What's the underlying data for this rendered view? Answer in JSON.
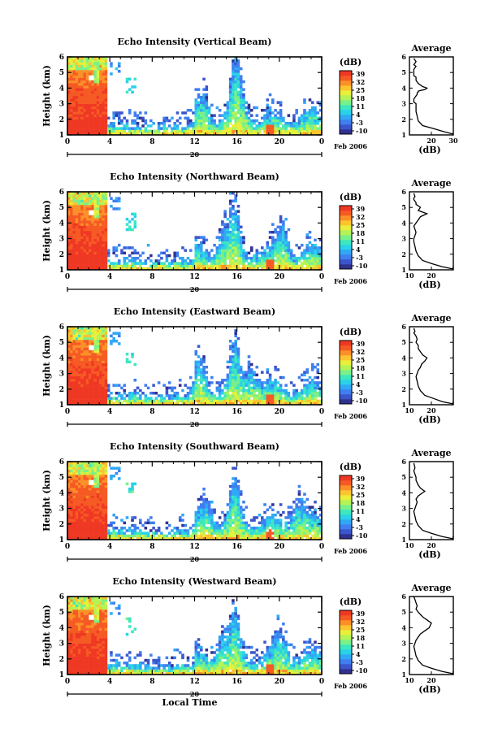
{
  "figure": {
    "xlabel": "Local Time",
    "colorbar_unit": "(dB)",
    "colorbar_ticks": [
      "39",
      "32",
      "25",
      "18",
      "11",
      "4",
      "-3",
      "-10"
    ],
    "colorbar_range": [
      -10,
      39
    ],
    "date_label": "Feb 2006",
    "day_label": "20",
    "palette": [
      "#30318f",
      "#3b56cc",
      "#3f7ff0",
      "#31a8f5",
      "#2ad2e8",
      "#3de7c0",
      "#79f08a",
      "#b5f356",
      "#e9ef3a",
      "#fdc42f",
      "#fb9028",
      "#f65a24",
      "#ef3823"
    ]
  },
  "chart_data": [
    {
      "type": "heatmap",
      "title": "Echo Intensity (Vertical Beam)",
      "ylabel": "Height (km)",
      "xlim": [
        0,
        24
      ],
      "ylim": [
        1,
        6
      ],
      "xticks": [
        "0",
        "4",
        "8",
        "12",
        "16",
        "20",
        "0"
      ],
      "yticks": [
        "1",
        "2",
        "3",
        "4",
        "5",
        "6"
      ],
      "peaks_hours": [
        15.8,
        16.4,
        12.8
      ],
      "profile": {
        "title": "Average",
        "xlabel": "(dB)",
        "xlim": [
          10,
          30
        ],
        "xticks": [
          "20",
          "30"
        ],
        "yticks": [
          "1",
          "2",
          "3",
          "4",
          "5",
          "6"
        ],
        "x": [
          30,
          26,
          21,
          16,
          14,
          13.5,
          13,
          13,
          13,
          12,
          12,
          12.5,
          13,
          13.5,
          13.5,
          14,
          14,
          15,
          17,
          18,
          16,
          14,
          13,
          13,
          12,
          12,
          12,
          12.5,
          13,
          12,
          12.5,
          13,
          12
        ],
        "y": [
          1.05,
          1.2,
          1.4,
          1.6,
          1.9,
          2.2,
          2.5,
          2.8,
          3.0,
          3.1,
          3.3,
          3.4,
          3.5,
          3.6,
          3.7,
          3.75,
          3.8,
          3.85,
          3.9,
          4.0,
          4.1,
          4.3,
          4.5,
          4.7,
          4.8,
          5.0,
          5.2,
          5.3,
          5.4,
          5.5,
          5.6,
          5.7,
          5.9
        ]
      }
    },
    {
      "type": "heatmap",
      "title": "Echo Intensity (Northward Beam)",
      "ylabel": "Height (km)",
      "xlim": [
        0,
        24
      ],
      "ylim": [
        1,
        6
      ],
      "xticks": [
        "0",
        "4",
        "8",
        "12",
        "16",
        "20",
        "0"
      ],
      "yticks": [
        "1",
        "2",
        "3",
        "4",
        "5",
        "6"
      ],
      "peaks_hours": [
        15.8,
        14.8,
        20.3
      ],
      "profile": {
        "title": "Average",
        "xlabel": "(dB)",
        "xlim": [
          10,
          30
        ],
        "xticks": [
          "10",
          "20"
        ],
        "yticks": [
          "1",
          "2",
          "3",
          "4",
          "5",
          "6"
        ],
        "x": [
          30,
          25,
          20,
          16,
          14,
          13,
          12.5,
          12,
          12,
          12.5,
          13,
          12.5,
          12,
          13,
          14,
          15,
          18,
          16,
          14,
          15,
          13,
          13,
          12.5,
          12,
          12,
          12.5,
          12
        ],
        "y": [
          1.05,
          1.2,
          1.4,
          1.6,
          1.9,
          2.2,
          2.5,
          2.8,
          3.0,
          3.2,
          3.4,
          3.6,
          3.8,
          4.0,
          4.2,
          4.4,
          4.6,
          4.7,
          4.8,
          5.0,
          5.2,
          5.3,
          5.4,
          5.5,
          5.6,
          5.7,
          5.9
        ]
      }
    },
    {
      "type": "heatmap",
      "title": "Echo Intensity (Eastward Beam)",
      "ylabel": "Height (km)",
      "xlim": [
        0,
        24
      ],
      "ylim": [
        1,
        6
      ],
      "xticks": [
        "0",
        "4",
        "8",
        "12",
        "16",
        "20",
        "0"
      ],
      "yticks": [
        "1",
        "2",
        "3",
        "4",
        "5",
        "6"
      ],
      "peaks_hours": [
        15.8,
        12.5,
        17.4
      ],
      "profile": {
        "title": "Average",
        "xlabel": "(dB)",
        "xlim": [
          10,
          30
        ],
        "xticks": [
          "10",
          "20"
        ],
        "yticks": [
          "1",
          "2",
          "3",
          "4",
          "5",
          "6"
        ],
        "x": [
          30,
          25,
          21,
          17,
          15,
          14,
          13.5,
          13,
          13.5,
          14,
          15,
          15.5,
          17,
          18,
          16,
          15,
          14,
          14,
          13,
          13.5,
          13,
          12.5,
          12,
          12.5,
          12
        ],
        "y": [
          1.05,
          1.2,
          1.4,
          1.6,
          1.9,
          2.2,
          2.5,
          2.8,
          3.0,
          3.2,
          3.4,
          3.6,
          3.8,
          4.0,
          4.2,
          4.4,
          4.6,
          4.8,
          5.0,
          5.2,
          5.4,
          5.5,
          5.6,
          5.7,
          5.9
        ]
      }
    },
    {
      "type": "heatmap",
      "title": "Echo Intensity (Southward Beam)",
      "ylabel": "Height (km)",
      "xlim": [
        0,
        24
      ],
      "ylim": [
        1,
        6
      ],
      "xticks": [
        "0",
        "4",
        "8",
        "12",
        "16",
        "20",
        "0"
      ],
      "yticks": [
        "1",
        "2",
        "3",
        "4",
        "5",
        "6"
      ],
      "peaks_hours": [
        15.8,
        13.2,
        21.8
      ],
      "profile": {
        "title": "Average",
        "xlabel": "(dB)",
        "xlim": [
          10,
          30
        ],
        "xticks": [
          "10",
          "20"
        ],
        "yticks": [
          "1",
          "2",
          "3",
          "4",
          "5",
          "6"
        ],
        "x": [
          30,
          25,
          20,
          16,
          14,
          13,
          12.5,
          12,
          12.5,
          13,
          13.5,
          13,
          14,
          16,
          17,
          15,
          14,
          13,
          13,
          12.5,
          12,
          12.5,
          12
        ],
        "y": [
          1.05,
          1.2,
          1.4,
          1.6,
          1.9,
          2.2,
          2.5,
          2.8,
          3.0,
          3.2,
          3.4,
          3.6,
          3.8,
          4.0,
          4.1,
          4.3,
          4.5,
          4.8,
          5.0,
          5.2,
          5.4,
          5.6,
          5.9
        ]
      }
    },
    {
      "type": "heatmap",
      "title": "Echo Intensity (Westward Beam)",
      "ylabel": "Height (km)",
      "xlim": [
        0,
        24
      ],
      "ylim": [
        1,
        6
      ],
      "xticks": [
        "0",
        "4",
        "8",
        "12",
        "16",
        "20",
        "0"
      ],
      "yticks": [
        "1",
        "2",
        "3",
        "4",
        "5",
        "6"
      ],
      "peaks_hours": [
        15.8,
        14.6,
        20.2
      ],
      "profile": {
        "title": "Average",
        "xlabel": "(dB)",
        "xlim": [
          10,
          30
        ],
        "xticks": [
          "10",
          "20"
        ],
        "yticks": [
          "1",
          "2",
          "3",
          "4",
          "5",
          "6"
        ],
        "x": [
          30,
          25,
          20,
          16,
          14,
          13,
          12.5,
          12,
          12.5,
          13,
          14,
          15,
          17,
          19,
          20,
          18,
          16,
          14,
          13,
          13.5,
          13,
          12.5,
          12
        ],
        "y": [
          1.05,
          1.2,
          1.4,
          1.6,
          1.9,
          2.2,
          2.5,
          2.8,
          3.0,
          3.2,
          3.4,
          3.6,
          3.8,
          4.0,
          4.3,
          4.5,
          4.7,
          5.0,
          5.2,
          5.4,
          5.6,
          5.8,
          6.0
        ]
      }
    }
  ]
}
